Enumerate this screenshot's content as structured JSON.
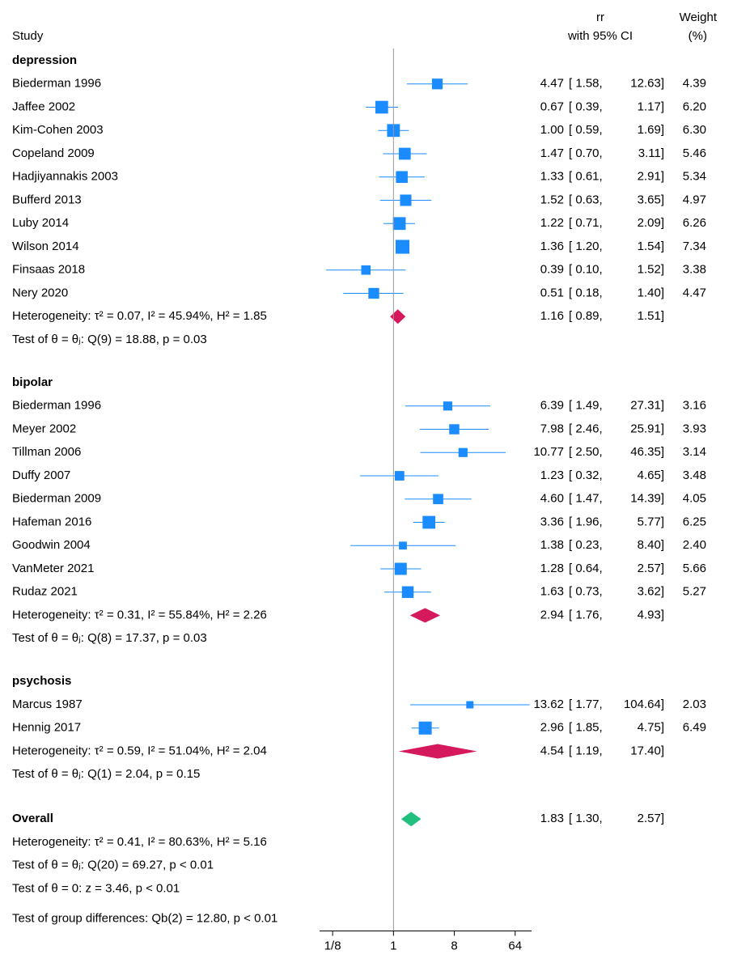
{
  "chart_data": {
    "type": "forest",
    "headers": {
      "study": "Study",
      "estimate": "rr",
      "ci": "with 95% CI",
      "weight": "Weight",
      "weight_unit": "(%)"
    },
    "xlog": true,
    "xlim": [
      0.08,
      112
    ],
    "xticks": [
      {
        "value": 0.125,
        "label": "1/8"
      },
      1,
      8,
      64
    ],
    "reference": 1,
    "marker_color": "#1a8cff",
    "group_color": "#d6185d",
    "overall_color": "#22c07f",
    "groups": [
      {
        "name": "depression",
        "studies": [
          {
            "name": "Biederman 1996",
            "values": [
              4.47,
              1.58,
              12.63,
              4.39
            ],
            "value_labels": [
              "4.47",
              "[ 1.58,",
              "12.63]",
              "4.39"
            ]
          },
          {
            "name": "Jaffee 2002",
            "values": [
              0.67,
              0.39,
              1.17,
              6.2
            ],
            "value_labels": [
              "0.67",
              "[ 0.39,",
              "1.17]",
              "6.20"
            ]
          },
          {
            "name": "Kim-Cohen 2003",
            "values": [
              1,
              0.59,
              1.69,
              6.3
            ],
            "value_labels": [
              "1.00",
              "[ 0.59,",
              "1.69]",
              "6.30"
            ]
          },
          {
            "name": "Copeland 2009",
            "values": [
              1.47,
              0.7,
              3.11,
              5.46
            ],
            "value_labels": [
              "1.47",
              "[ 0.70,",
              "3.11]",
              "5.46"
            ]
          },
          {
            "name": "Hadjiyannakis 2003",
            "values": [
              1.33,
              0.61,
              2.91,
              5.34
            ],
            "value_labels": [
              "1.33",
              "[ 0.61,",
              "2.91]",
              "5.34"
            ]
          },
          {
            "name": "Bufferd 2013",
            "values": [
              1.52,
              0.63,
              3.65,
              4.97
            ],
            "value_labels": [
              "1.52",
              "[ 0.63,",
              "3.65]",
              "4.97"
            ]
          },
          {
            "name": "Luby 2014",
            "values": [
              1.22,
              0.71,
              2.09,
              6.26
            ],
            "value_labels": [
              "1.22",
              "[ 0.71,",
              "2.09]",
              "6.26"
            ]
          },
          {
            "name": "Wilson 2014",
            "values": [
              1.36,
              1.2,
              1.54,
              7.34
            ],
            "value_labels": [
              "1.36",
              "[ 1.20,",
              "1.54]",
              "7.34"
            ]
          },
          {
            "name": "Finsaas 2018",
            "values": [
              0.39,
              0.1,
              1.52,
              3.38
            ],
            "value_labels": [
              "0.39",
              "[ 0.10,",
              "1.52]",
              "3.38"
            ]
          },
          {
            "name": "Nery 2020",
            "values": [
              0.51,
              0.18,
              1.4,
              4.47
            ],
            "value_labels": [
              "0.51",
              "[ 0.18,",
              "1.40]",
              "4.47"
            ]
          }
        ],
        "summary": {
          "values": [
            1.16,
            0.89,
            1.51
          ],
          "value_labels": [
            "1.16",
            "[ 0.89,",
            "1.51]"
          ]
        },
        "heterogeneity": "Heterogeneity: τ² = 0.07, I² = 45.94%, H² = 1.85",
        "test": "Test of θ = θⱼ: Q(9) = 18.88, p = 0.03"
      },
      {
        "name": "bipolar",
        "studies": [
          {
            "name": "Biederman 1996",
            "values": [
              6.39,
              1.49,
              27.31,
              3.16
            ],
            "value_labels": [
              "6.39",
              "[ 1.49,",
              "27.31]",
              "3.16"
            ]
          },
          {
            "name": "Meyer 2002",
            "values": [
              7.98,
              2.46,
              25.91,
              3.93
            ],
            "value_labels": [
              "7.98",
              "[ 2.46,",
              "25.91]",
              "3.93"
            ]
          },
          {
            "name": "Tillman 2006",
            "values": [
              10.77,
              2.5,
              46.35,
              3.14
            ],
            "value_labels": [
              "10.77",
              "[ 2.50,",
              "46.35]",
              "3.14"
            ]
          },
          {
            "name": "Duffy 2007",
            "values": [
              1.23,
              0.32,
              4.65,
              3.48
            ],
            "value_labels": [
              "1.23",
              "[ 0.32,",
              "4.65]",
              "3.48"
            ]
          },
          {
            "name": "Biederman 2009",
            "values": [
              4.6,
              1.47,
              14.39,
              4.05
            ],
            "value_labels": [
              "4.60",
              "[ 1.47,",
              "14.39]",
              "4.05"
            ]
          },
          {
            "name": "Hafeman 2016",
            "values": [
              3.36,
              1.96,
              5.77,
              6.25
            ],
            "value_labels": [
              "3.36",
              "[ 1.96,",
              "5.77]",
              "6.25"
            ]
          },
          {
            "name": "Goodwin 2004",
            "values": [
              1.38,
              0.23,
              8.4,
              2.4
            ],
            "value_labels": [
              "1.38",
              "[ 0.23,",
              "8.40]",
              "2.40"
            ]
          },
          {
            "name": "VanMeter 2021",
            "values": [
              1.28,
              0.64,
              2.57,
              5.66
            ],
            "value_labels": [
              "1.28",
              "[ 0.64,",
              "2.57]",
              "5.66"
            ]
          },
          {
            "name": "Rudaz 2021",
            "values": [
              1.63,
              0.73,
              3.62,
              5.27
            ],
            "value_labels": [
              "1.63",
              "[ 0.73,",
              "3.62]",
              "5.27"
            ]
          }
        ],
        "summary": {
          "values": [
            2.94,
            1.76,
            4.93
          ],
          "value_labels": [
            "2.94",
            "[ 1.76,",
            "4.93]"
          ]
        },
        "heterogeneity": "Heterogeneity: τ² = 0.31, I² = 55.84%, H² = 2.26",
        "test": "Test of θ = θⱼ: Q(8) = 17.37, p = 0.03"
      },
      {
        "name": "psychosis",
        "studies": [
          {
            "name": "Marcus 1987",
            "values": [
              13.62,
              1.77,
              104.64,
              2.03
            ],
            "value_labels": [
              "13.62",
              "[ 1.77,",
              "104.64]",
              "2.03"
            ]
          },
          {
            "name": "Hennig 2017",
            "values": [
              2.96,
              1.85,
              4.75,
              6.49
            ],
            "value_labels": [
              "2.96",
              "[ 1.85,",
              "4.75]",
              "6.49"
            ]
          }
        ],
        "summary": {
          "values": [
            4.54,
            1.19,
            17.4
          ],
          "value_labels": [
            "4.54",
            "[ 1.19,",
            "17.40]"
          ]
        },
        "heterogeneity": "Heterogeneity: τ² = 0.59, I² = 51.04%, H² = 2.04",
        "test": "Test of θ = θⱼ: Q(1) = 2.04, p = 0.15"
      }
    ],
    "overall": {
      "name": "Overall",
      "values": [
        1.83,
        1.3,
        2.57
      ],
      "value_labels": [
        "1.83",
        "[ 1.30,",
        "2.57]"
      ],
      "heterogeneity": "Heterogeneity: τ² = 0.41, I² = 80.63%, H² = 5.16",
      "tests": [
        "Test of θ = θⱼ: Q(20) = 69.27, p < 0.01",
        "Test of θ = 0: z = 3.46, p < 0.01"
      ]
    },
    "group_test": "Test of group differences: Qb(2) = 12.80, p < 0.01"
  }
}
